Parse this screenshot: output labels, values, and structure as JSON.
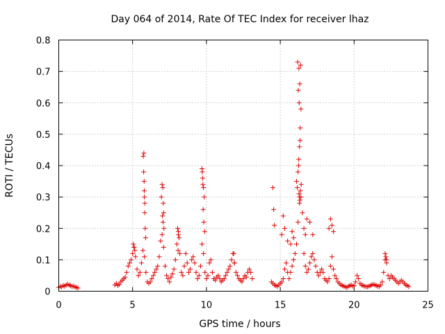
{
  "chart_data": {
    "type": "scatter",
    "title": "Day 064 of 2014, Rate Of TEC Index for receiver lhaz",
    "xlabel": "GPS time / hours",
    "ylabel": "ROTI / TECUs",
    "xlim": [
      0,
      25
    ],
    "ylim": [
      0,
      0.8
    ],
    "xticks": [
      0,
      5,
      10,
      15,
      20,
      25
    ],
    "yticks": [
      0,
      0.1,
      0.2,
      0.3,
      0.4,
      0.5,
      0.6,
      0.7,
      0.8
    ],
    "xtick_labels": [
      "0",
      "5",
      "10",
      "15",
      "20",
      "25"
    ],
    "ytick_labels": [
      "0",
      "0.1",
      "0.2",
      "0.3",
      "0.4",
      "0.5",
      "0.6",
      "0.7",
      "0.8"
    ],
    "grid": true,
    "marker": "+",
    "color": "#e00000",
    "series": [
      {
        "name": "ROTI",
        "x": [
          0.0,
          0.1,
          0.2,
          0.3,
          0.4,
          0.5,
          0.6,
          0.7,
          0.8,
          0.9,
          1.0,
          1.1,
          1.2,
          1.3,
          3.8,
          3.9,
          4.0,
          4.1,
          4.2,
          4.3,
          4.4,
          4.5,
          4.6,
          4.7,
          4.8,
          4.9,
          5.0,
          5.1,
          5.2,
          5.3,
          5.4,
          5.5,
          5.6,
          5.7,
          5.8,
          5.9,
          6.0,
          6.1,
          6.2,
          6.3,
          6.4,
          6.5,
          6.6,
          6.7,
          6.8,
          6.9,
          7.0,
          7.1,
          7.2,
          7.3,
          7.4,
          7.5,
          7.6,
          7.7,
          7.8,
          7.9,
          8.0,
          8.1,
          8.2,
          8.3,
          8.4,
          8.5,
          8.6,
          8.7,
          8.8,
          8.9,
          9.0,
          9.1,
          9.2,
          9.3,
          9.4,
          9.5,
          9.6,
          9.7,
          9.8,
          9.9,
          10.0,
          10.1,
          10.2,
          10.3,
          10.4,
          10.5,
          10.6,
          10.7,
          10.8,
          10.9,
          11.0,
          11.1,
          11.2,
          11.3,
          11.4,
          11.5,
          11.6,
          11.7,
          11.8,
          11.9,
          12.0,
          12.1,
          12.2,
          12.3,
          12.4,
          12.5,
          12.6,
          12.7,
          12.8,
          12.9,
          13.0,
          13.1,
          14.4,
          14.5,
          14.6,
          14.7,
          14.8,
          14.9,
          15.0,
          15.1,
          15.2,
          15.3,
          15.4,
          15.5,
          15.6,
          15.7,
          15.8,
          15.9,
          16.0,
          16.1,
          16.2,
          16.3,
          16.4,
          16.5,
          16.6,
          16.7,
          16.8,
          16.9,
          17.0,
          17.1,
          17.2,
          17.3,
          17.4,
          17.5,
          17.6,
          17.7,
          17.8,
          17.9,
          18.0,
          18.1,
          18.2,
          18.3,
          18.4,
          18.5,
          18.6,
          18.7,
          18.8,
          18.9,
          19.0,
          19.1,
          19.2,
          19.3,
          19.4,
          19.5,
          19.6,
          19.7,
          19.8,
          19.9,
          20.0,
          20.1,
          20.2,
          20.3,
          20.4,
          20.5,
          20.6,
          20.7,
          20.8,
          20.9,
          21.0,
          21.1,
          21.2,
          21.3,
          21.4,
          21.5,
          21.6,
          21.7,
          21.8,
          21.9,
          22.0,
          22.1,
          22.2,
          22.3,
          22.4,
          22.5,
          22.6,
          22.7,
          22.8,
          22.9,
          23.0,
          23.1,
          23.2,
          23.3,
          23.4,
          23.5,
          23.6,
          23.7,
          5.05,
          5.15,
          5.1,
          5.72,
          5.75,
          5.78,
          5.8,
          5.82,
          5.85,
          5.88,
          5.76,
          5.79,
          5.83,
          6.95,
          7.0,
          7.05,
          7.08,
          7.1,
          7.02,
          7.06,
          7.12,
          8.05,
          8.1,
          8.15,
          8.08,
          9.7,
          9.75,
          9.8,
          9.85,
          9.72,
          9.78,
          9.82,
          9.88,
          9.76,
          11.85,
          11.9,
          16.1,
          16.15,
          16.2,
          16.25,
          16.3,
          16.35,
          16.4,
          16.28,
          16.22,
          16.32,
          16.18,
          16.38,
          16.26,
          16.34,
          16.24,
          16.42,
          16.36,
          16.3,
          16.27,
          16.33,
          14.5,
          14.55,
          14.6,
          15.1,
          15.2,
          15.3,
          15.5,
          15.8,
          16.8,
          17.0,
          17.2,
          18.3,
          18.4,
          18.5,
          22.1,
          22.15,
          22.2,
          18.6,
          15.7,
          15.9,
          16.6,
          16.7
        ],
        "y": [
          0.012,
          0.015,
          0.014,
          0.018,
          0.016,
          0.02,
          0.022,
          0.02,
          0.018,
          0.015,
          0.016,
          0.014,
          0.012,
          0.01,
          0.02,
          0.025,
          0.018,
          0.022,
          0.03,
          0.035,
          0.04,
          0.045,
          0.06,
          0.08,
          0.09,
          0.1,
          0.12,
          0.14,
          0.11,
          0.07,
          0.05,
          0.06,
          0.09,
          0.13,
          0.11,
          0.06,
          0.03,
          0.025,
          0.03,
          0.04,
          0.05,
          0.06,
          0.07,
          0.08,
          0.11,
          0.16,
          0.18,
          0.14,
          0.08,
          0.05,
          0.04,
          0.03,
          0.045,
          0.055,
          0.07,
          0.1,
          0.15,
          0.18,
          0.12,
          0.06,
          0.05,
          0.08,
          0.12,
          0.09,
          0.06,
          0.07,
          0.1,
          0.11,
          0.09,
          0.06,
          0.04,
          0.05,
          0.08,
          0.15,
          0.12,
          0.06,
          0.04,
          0.05,
          0.09,
          0.1,
          0.06,
          0.04,
          0.035,
          0.045,
          0.05,
          0.04,
          0.03,
          0.035,
          0.04,
          0.05,
          0.06,
          0.07,
          0.08,
          0.1,
          0.12,
          0.09,
          0.06,
          0.05,
          0.04,
          0.035,
          0.03,
          0.04,
          0.05,
          0.045,
          0.06,
          0.07,
          0.06,
          0.04,
          0.03,
          0.025,
          0.02,
          0.018,
          0.015,
          0.02,
          0.025,
          0.03,
          0.04,
          0.07,
          0.09,
          0.06,
          0.04,
          0.06,
          0.08,
          0.1,
          0.12,
          0.15,
          0.22,
          0.28,
          0.3,
          0.25,
          0.12,
          0.08,
          0.06,
          0.07,
          0.09,
          0.11,
          0.12,
          0.1,
          0.08,
          0.06,
          0.05,
          0.06,
          0.07,
          0.06,
          0.04,
          0.035,
          0.03,
          0.04,
          0.08,
          0.11,
          0.07,
          0.05,
          0.04,
          0.03,
          0.025,
          0.02,
          0.018,
          0.016,
          0.014,
          0.012,
          0.015,
          0.018,
          0.02,
          0.016,
          0.018,
          0.03,
          0.05,
          0.04,
          0.025,
          0.02,
          0.018,
          0.016,
          0.015,
          0.014,
          0.016,
          0.018,
          0.02,
          0.022,
          0.02,
          0.018,
          0.016,
          0.015,
          0.02,
          0.03,
          0.06,
          0.1,
          0.09,
          0.05,
          0.04,
          0.05,
          0.045,
          0.04,
          0.035,
          0.03,
          0.025,
          0.03,
          0.035,
          0.03,
          0.025,
          0.02,
          0.018,
          0.015,
          0.15,
          0.13,
          0.14,
          0.43,
          0.38,
          0.35,
          0.3,
          0.25,
          0.2,
          0.17,
          0.44,
          0.32,
          0.28,
          0.3,
          0.34,
          0.33,
          0.28,
          0.25,
          0.24,
          0.22,
          0.2,
          0.2,
          0.19,
          0.17,
          0.13,
          0.39,
          0.36,
          0.33,
          0.3,
          0.38,
          0.26,
          0.22,
          0.19,
          0.34,
          0.12,
          0.09,
          0.35,
          0.33,
          0.38,
          0.42,
          0.46,
          0.52,
          0.58,
          0.6,
          0.64,
          0.66,
          0.73,
          0.72,
          0.71,
          0.48,
          0.4,
          0.34,
          0.32,
          0.3,
          0.31,
          0.29,
          0.33,
          0.26,
          0.21,
          0.18,
          0.24,
          0.2,
          0.16,
          0.19,
          0.23,
          0.22,
          0.18,
          0.2,
          0.23,
          0.21,
          0.12,
          0.11,
          0.1,
          0.19,
          0.15,
          0.17,
          0.2,
          0.18
        ]
      }
    ]
  }
}
